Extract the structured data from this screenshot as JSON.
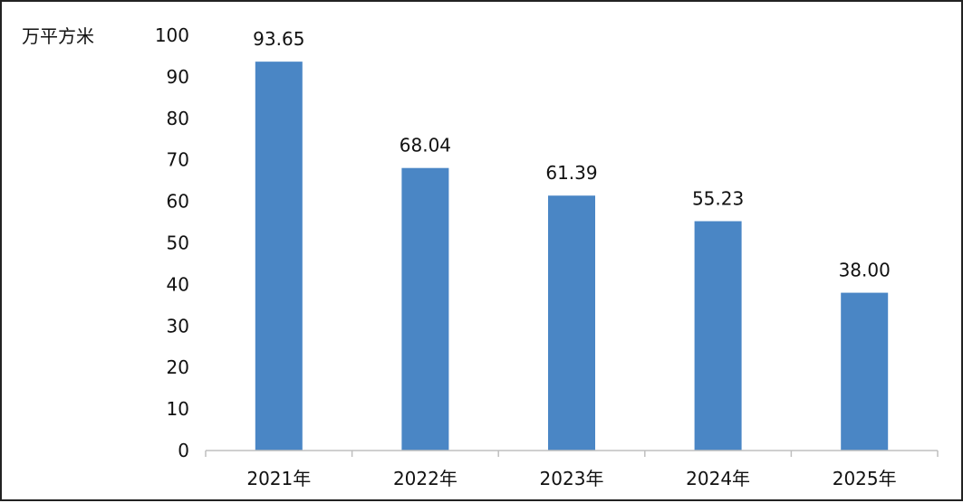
{
  "chart_data": {
    "type": "bar",
    "title": "",
    "ylabel": "万平方米",
    "xlabel": "",
    "categories": [
      "2021年",
      "2022年",
      "2023年",
      "2024年",
      "2025年"
    ],
    "series": [
      {
        "values": [
          93.65,
          68.04,
          61.39,
          55.23,
          38.0
        ],
        "labels": [
          "93.65",
          "68.04",
          "61.39",
          "55.23",
          "38.00"
        ]
      }
    ],
    "ylim": [
      0,
      100
    ],
    "yticks": [
      0,
      10,
      20,
      30,
      40,
      50,
      60,
      70,
      80,
      90,
      100
    ],
    "grid": false,
    "legend": "none",
    "bar_color": "#4a86c5",
    "axis_color": "#bfbfbf"
  }
}
